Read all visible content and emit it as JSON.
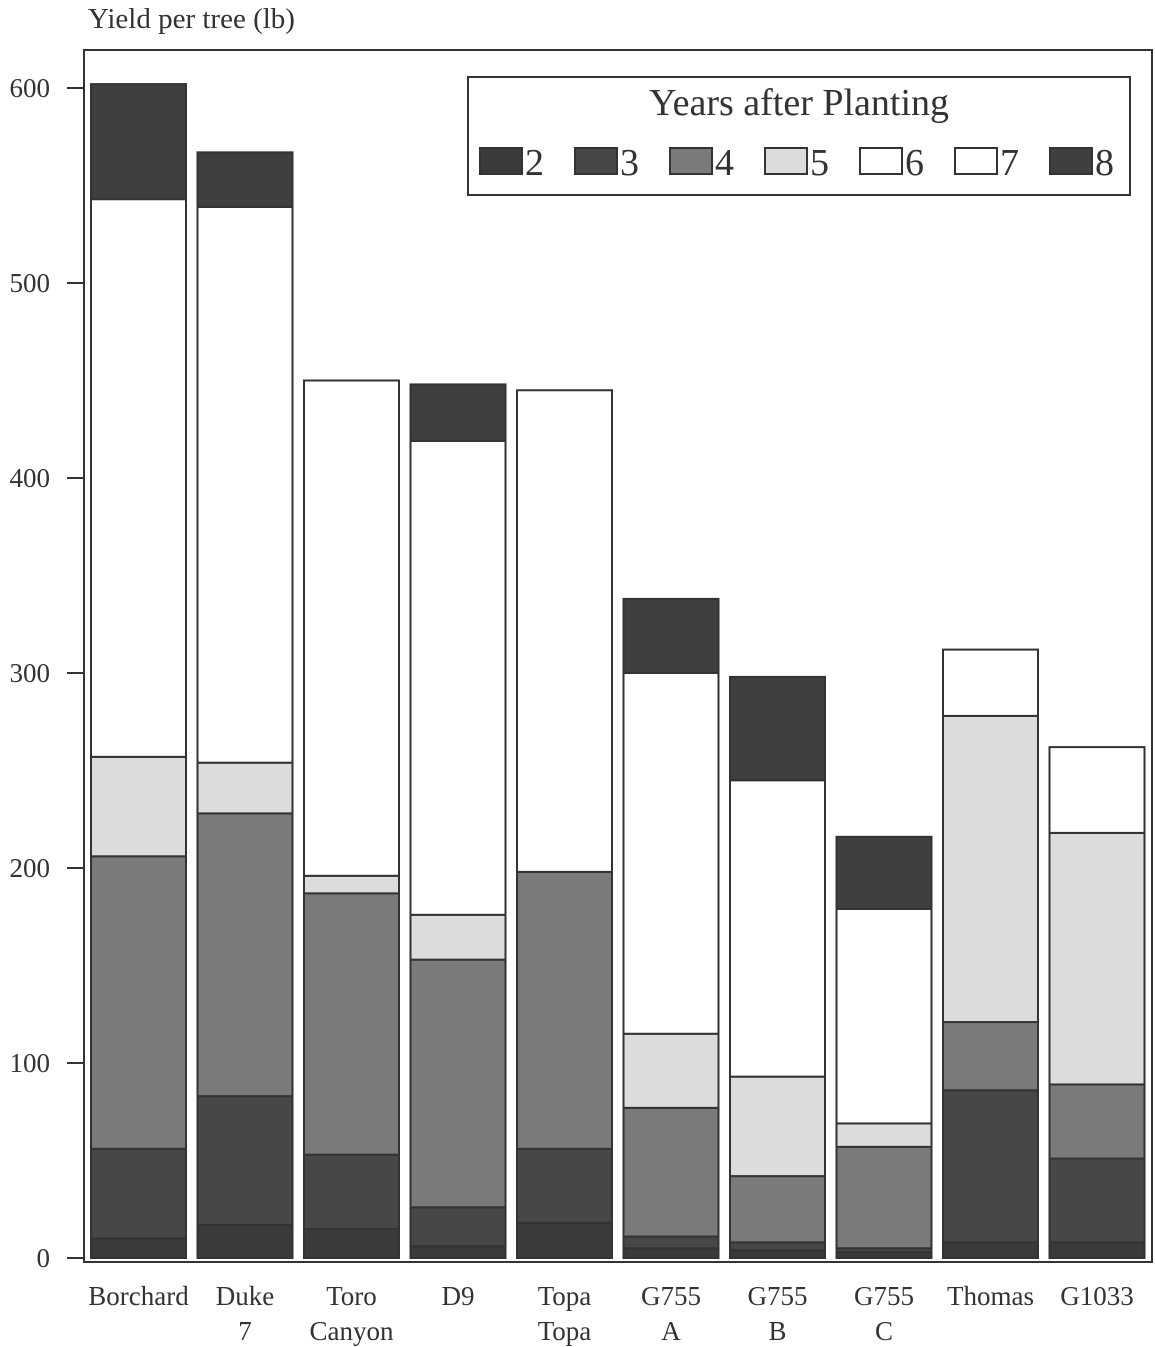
{
  "chart_data": {
    "type": "bar",
    "stacked": true,
    "ylabel": "Yield per tree (lb)",
    "xlabel": "",
    "ylim": [
      0,
      600
    ],
    "yticks": [
      0,
      100,
      200,
      300,
      400,
      500,
      600
    ],
    "grid": false,
    "legend": {
      "title": "Years after Planting",
      "position": "top-right"
    },
    "categories": [
      [
        "Borchard"
      ],
      [
        "Duke",
        "7"
      ],
      [
        "Toro",
        "Canyon"
      ],
      [
        "D9"
      ],
      [
        "Topa",
        "Topa"
      ],
      [
        "G755",
        "A"
      ],
      [
        "G755",
        "B"
      ],
      [
        "G755",
        "C"
      ],
      [
        "Thomas"
      ],
      [
        "G1033"
      ]
    ],
    "series": [
      {
        "name": "2",
        "color": "#3a3a3a",
        "values": [
          10,
          17,
          15,
          6,
          18,
          5,
          4,
          3,
          8,
          8
        ]
      },
      {
        "name": "3",
        "color": "#474747",
        "values": [
          46,
          66,
          38,
          20,
          38,
          6,
          4,
          2,
          78,
          43
        ]
      },
      {
        "name": "4",
        "color": "#7a7a7a",
        "values": [
          150,
          145,
          134,
          127,
          142,
          66,
          34,
          52,
          35,
          38
        ]
      },
      {
        "name": "5",
        "color": "#dcdcdc",
        "values": [
          51,
          26,
          9,
          23,
          0,
          38,
          51,
          12,
          157,
          129
        ]
      },
      {
        "name": "6",
        "color": "#ffffff",
        "values": [
          286,
          285,
          254,
          243,
          247,
          185,
          152,
          110,
          34,
          44
        ]
      },
      {
        "name": "7",
        "color": "#ffffff",
        "values": [
          0,
          0,
          0,
          0,
          0,
          0,
          0,
          0,
          0,
          0
        ]
      },
      {
        "name": "8",
        "color": "#3f3f3f",
        "values": [
          59,
          28,
          0,
          29,
          0,
          38,
          53,
          37,
          0,
          0
        ]
      }
    ]
  }
}
